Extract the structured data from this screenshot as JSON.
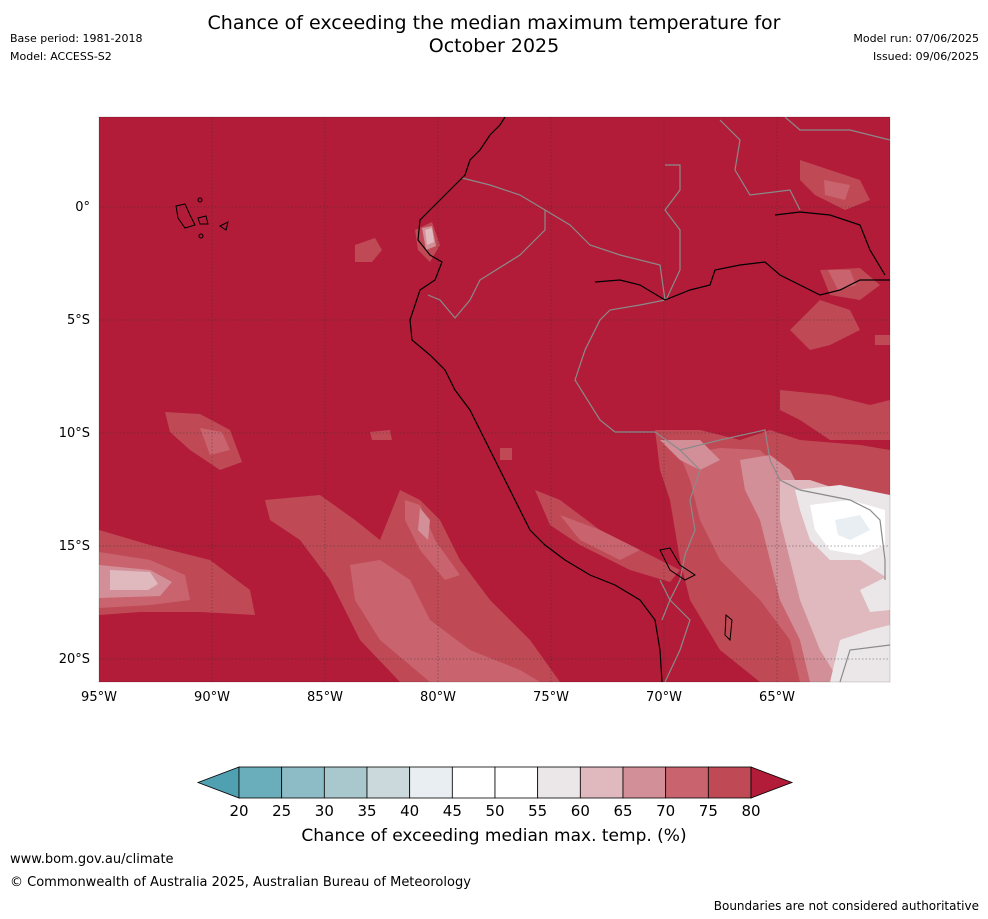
{
  "header": {
    "title_line1": "Chance of exceeding the median maximum temperature for",
    "title_line2": "October 2025",
    "base_period": "Base period: 1981-2018",
    "model": "Model: ACCESS-S2",
    "model_run": "Model run: 07/06/2025",
    "issued": "Issued: 09/06/2025"
  },
  "map": {
    "lat_labels": [
      "0°",
      "5°S",
      "10°S",
      "15°S",
      "20°S"
    ],
    "lon_labels": [
      "95°W",
      "90°W",
      "85°W",
      "80°W",
      "75°W",
      "70°W",
      "65°W"
    ],
    "lat_values": [
      0,
      -5,
      -10,
      -15,
      -20
    ],
    "lon_values": [
      -95,
      -90,
      -85,
      -80,
      -75,
      -70,
      -65
    ],
    "extent": {
      "lon_min": -95,
      "lon_max": -60,
      "lat_min": -21,
      "lat_max": 4
    },
    "dominant_category": "80+"
  },
  "colorbar": {
    "tick_labels": [
      "20",
      "25",
      "30",
      "35",
      "40",
      "45",
      "50",
      "55",
      "60",
      "65",
      "70",
      "75",
      "80"
    ],
    "colors": [
      "#4fa0b0",
      "#6aadbb",
      "#8ebcc6",
      "#a9c8cd",
      "#cbd9dc",
      "#e8eef1",
      "#ffffff",
      "#ffffff",
      "#ebe7e8",
      "#dfb9be",
      "#d38f98",
      "#c9646f",
      "#bf4a56",
      "#b21c38"
    ],
    "label": "Chance of exceeding median max. temp. (%)"
  },
  "footer": {
    "url": "www.bom.gov.au/climate",
    "copyright": "© Commonwealth of Australia 2025, Australian Bureau of Meteorology",
    "disclaimer": "Boundaries are not considered authoritative"
  }
}
